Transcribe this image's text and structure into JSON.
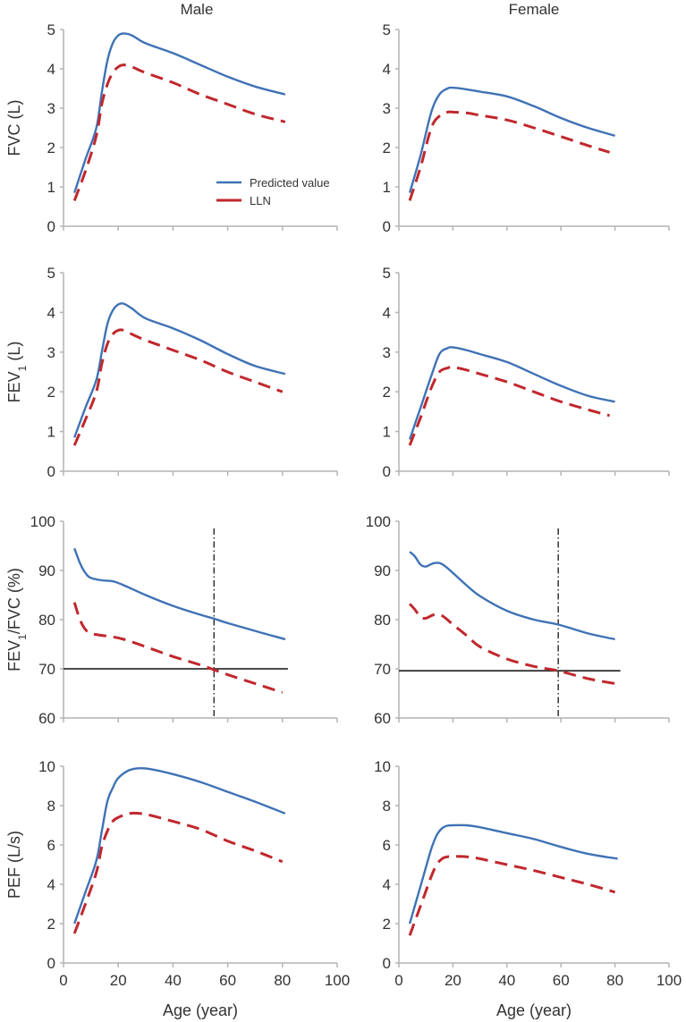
{
  "colors": {
    "predicted": "#3f72b5",
    "lln": "#c0282d",
    "axis": "#b4b4b4",
    "ref": "#333333"
  },
  "legend": {
    "predicted": "Predicted value",
    "lln": "LLN"
  },
  "columns": [
    "Male",
    "Female"
  ],
  "xlabel": "Age (year)",
  "chart_data": [
    {
      "type": "line",
      "panel": "FVC",
      "sex": "Male",
      "ylabel": "FVC (L)",
      "xlim": [
        0,
        100
      ],
      "ylim": [
        0,
        5
      ],
      "xticks": [
        "0",
        "20",
        "40",
        "60",
        "80",
        "100"
      ],
      "yticks": [
        "0",
        "1",
        "2",
        "3",
        "4",
        "5"
      ],
      "series": [
        {
          "name": "Predicted value",
          "x": [
            4,
            8,
            12,
            14,
            16,
            18,
            20,
            22,
            25,
            30,
            40,
            50,
            60,
            70,
            81
          ],
          "y": [
            0.85,
            1.7,
            2.5,
            3.4,
            4.2,
            4.65,
            4.85,
            4.9,
            4.85,
            4.65,
            4.4,
            4.1,
            3.8,
            3.55,
            3.35
          ]
        },
        {
          "name": "LLN",
          "x": [
            4,
            8,
            12,
            14,
            16,
            18,
            20,
            22,
            25,
            30,
            40,
            50,
            60,
            70,
            81
          ],
          "y": [
            0.65,
            1.4,
            2.3,
            3.1,
            3.6,
            3.9,
            4.05,
            4.1,
            4.05,
            3.9,
            3.65,
            3.35,
            3.1,
            2.85,
            2.65
          ]
        }
      ]
    },
    {
      "type": "line",
      "panel": "FVC",
      "sex": "Female",
      "ylabel": "",
      "xlim": [
        0,
        100
      ],
      "ylim": [
        0,
        5
      ],
      "xticks": [
        "0",
        "20",
        "40",
        "60",
        "80",
        "100"
      ],
      "yticks": [
        "0",
        "1",
        "2",
        "3",
        "4",
        "5"
      ],
      "series": [
        {
          "name": "Predicted value",
          "x": [
            4,
            8,
            12,
            15,
            18,
            20,
            25,
            30,
            40,
            50,
            60,
            70,
            80
          ],
          "y": [
            0.85,
            1.8,
            2.9,
            3.35,
            3.5,
            3.52,
            3.48,
            3.42,
            3.3,
            3.05,
            2.75,
            2.5,
            2.3
          ]
        },
        {
          "name": "LLN",
          "x": [
            4,
            8,
            12,
            15,
            18,
            20,
            25,
            30,
            40,
            50,
            60,
            70,
            78
          ],
          "y": [
            0.65,
            1.5,
            2.5,
            2.8,
            2.9,
            2.9,
            2.88,
            2.82,
            2.7,
            2.5,
            2.28,
            2.05,
            1.88
          ]
        }
      ]
    },
    {
      "type": "line",
      "panel": "FEV1",
      "sex": "Male",
      "ylabel": "FEV1 (L)",
      "xlim": [
        0,
        100
      ],
      "ylim": [
        0,
        5
      ],
      "xticks": [
        "0",
        "20",
        "40",
        "60",
        "80",
        "100"
      ],
      "yticks": [
        "0",
        "1",
        "2",
        "3",
        "4",
        "5"
      ],
      "series": [
        {
          "name": "Predicted value",
          "x": [
            4,
            8,
            12,
            14,
            16,
            18,
            20,
            22,
            25,
            30,
            40,
            50,
            60,
            70,
            81
          ],
          "y": [
            0.85,
            1.6,
            2.3,
            3.0,
            3.7,
            4.05,
            4.2,
            4.22,
            4.1,
            3.85,
            3.6,
            3.3,
            2.95,
            2.65,
            2.45
          ]
        },
        {
          "name": "LLN",
          "x": [
            4,
            8,
            12,
            14,
            16,
            18,
            20,
            22,
            25,
            30,
            40,
            50,
            60,
            70,
            80
          ],
          "y": [
            0.65,
            1.3,
            2.0,
            2.7,
            3.2,
            3.45,
            3.55,
            3.55,
            3.45,
            3.3,
            3.05,
            2.8,
            2.5,
            2.25,
            2.0
          ]
        }
      ]
    },
    {
      "type": "line",
      "panel": "FEV1",
      "sex": "Female",
      "ylabel": "",
      "xlim": [
        0,
        100
      ],
      "ylim": [
        0,
        5
      ],
      "xticks": [
        "0",
        "20",
        "40",
        "60",
        "80",
        "100"
      ],
      "yticks": [
        "0",
        "1",
        "2",
        "3",
        "4",
        "5"
      ],
      "series": [
        {
          "name": "Predicted value",
          "x": [
            4,
            8,
            12,
            15,
            18,
            20,
            25,
            30,
            40,
            50,
            60,
            70,
            80
          ],
          "y": [
            0.8,
            1.6,
            2.4,
            2.95,
            3.1,
            3.12,
            3.05,
            2.95,
            2.75,
            2.45,
            2.15,
            1.9,
            1.75
          ]
        },
        {
          "name": "LLN",
          "x": [
            4,
            8,
            12,
            15,
            18,
            20,
            25,
            30,
            40,
            50,
            60,
            70,
            78
          ],
          "y": [
            0.65,
            1.35,
            2.1,
            2.5,
            2.6,
            2.62,
            2.55,
            2.45,
            2.25,
            2.0,
            1.75,
            1.55,
            1.4
          ]
        }
      ]
    },
    {
      "type": "line",
      "panel": "FEV1/FVC",
      "sex": "Male",
      "ylabel": "FEV1/FVC (%)",
      "xlim": [
        0,
        100
      ],
      "ylim": [
        60,
        100
      ],
      "xticks": [
        "0",
        "20",
        "40",
        "60",
        "80",
        "100"
      ],
      "yticks": [
        "60",
        "70",
        "80",
        "90",
        "100"
      ],
      "reference_lines": {
        "horizontal_y": 70,
        "vertical_x": 55
      },
      "series": [
        {
          "name": "Predicted value",
          "x": [
            4,
            6,
            8,
            10,
            14,
            18,
            22,
            30,
            40,
            50,
            55,
            60,
            70,
            81
          ],
          "y": [
            94.5,
            91.5,
            89.5,
            88.5,
            88.0,
            87.8,
            87.0,
            85.0,
            82.8,
            81.0,
            80.2,
            79.3,
            77.7,
            76.0
          ]
        },
        {
          "name": "LLN",
          "x": [
            4,
            6,
            8,
            10,
            14,
            18,
            22,
            30,
            40,
            50,
            55,
            60,
            70,
            80
          ],
          "y": [
            83.5,
            80.0,
            78.0,
            77.2,
            76.8,
            76.5,
            76.0,
            74.5,
            72.5,
            70.8,
            69.8,
            68.8,
            67.0,
            65.2
          ]
        }
      ]
    },
    {
      "type": "line",
      "panel": "FEV1/FVC",
      "sex": "Female",
      "ylabel": "",
      "xlim": [
        0,
        100
      ],
      "ylim": [
        60,
        100
      ],
      "xticks": [
        "0",
        "20",
        "40",
        "60",
        "80",
        "100"
      ],
      "yticks": [
        "60",
        "70",
        "80",
        "90",
        "100"
      ],
      "reference_lines": {
        "horizontal_y": 69.6,
        "vertical_x": 59
      },
      "series": [
        {
          "name": "Predicted value",
          "x": [
            4,
            6,
            8,
            10,
            13,
            16,
            20,
            25,
            30,
            40,
            50,
            59,
            70,
            80
          ],
          "y": [
            93.8,
            92.8,
            91.2,
            90.8,
            91.5,
            91.3,
            89.5,
            87.0,
            84.8,
            81.8,
            80.0,
            79.0,
            77.2,
            76.0
          ]
        },
        {
          "name": "LLN",
          "x": [
            4,
            6,
            8,
            10,
            13,
            16,
            20,
            25,
            30,
            40,
            50,
            59,
            70,
            80
          ],
          "y": [
            83.2,
            82.0,
            80.5,
            80.3,
            81.0,
            80.8,
            79.0,
            76.8,
            74.5,
            72.0,
            70.5,
            69.6,
            68.0,
            67.0
          ]
        }
      ]
    },
    {
      "type": "line",
      "panel": "PEF",
      "sex": "Male",
      "ylabel": "PEF (L/s)",
      "xlim": [
        0,
        100
      ],
      "ylim": [
        0,
        10
      ],
      "xticks": [
        "0",
        "20",
        "40",
        "60",
        "80",
        "100"
      ],
      "yticks": [
        "0",
        "2",
        "4",
        "6",
        "8",
        "10"
      ],
      "series": [
        {
          "name": "Predicted value",
          "x": [
            4,
            8,
            12,
            14,
            16,
            18,
            20,
            24,
            28,
            32,
            40,
            50,
            60,
            70,
            81
          ],
          "y": [
            2.0,
            3.6,
            5.2,
            6.7,
            8.2,
            8.9,
            9.4,
            9.8,
            9.9,
            9.85,
            9.6,
            9.2,
            8.7,
            8.2,
            7.6
          ]
        },
        {
          "name": "LLN",
          "x": [
            4,
            8,
            12,
            14,
            16,
            18,
            20,
            24,
            28,
            32,
            40,
            50,
            60,
            70,
            80
          ],
          "y": [
            1.5,
            3.0,
            4.6,
            5.9,
            6.7,
            7.2,
            7.4,
            7.6,
            7.6,
            7.5,
            7.2,
            6.8,
            6.2,
            5.7,
            5.15
          ]
        }
      ]
    },
    {
      "type": "line",
      "panel": "PEF",
      "sex": "Female",
      "ylabel": "",
      "xlim": [
        0,
        100
      ],
      "ylim": [
        0,
        10
      ],
      "xticks": [
        "0",
        "20",
        "40",
        "60",
        "80",
        "100"
      ],
      "yticks": [
        "0",
        "2",
        "4",
        "6",
        "8",
        "10"
      ],
      "series": [
        {
          "name": "Predicted value",
          "x": [
            4,
            8,
            12,
            14,
            16,
            18,
            20,
            25,
            30,
            40,
            50,
            60,
            70,
            81
          ],
          "y": [
            2.0,
            3.9,
            5.8,
            6.5,
            6.85,
            6.98,
            7.0,
            7.0,
            6.9,
            6.6,
            6.3,
            5.9,
            5.55,
            5.3
          ]
        },
        {
          "name": "LLN",
          "x": [
            4,
            8,
            12,
            14,
            16,
            18,
            20,
            25,
            30,
            40,
            50,
            60,
            70,
            80
          ],
          "y": [
            1.4,
            2.9,
            4.4,
            5.0,
            5.3,
            5.4,
            5.42,
            5.4,
            5.3,
            5.0,
            4.7,
            4.35,
            4.0,
            3.6
          ]
        }
      ]
    }
  ]
}
